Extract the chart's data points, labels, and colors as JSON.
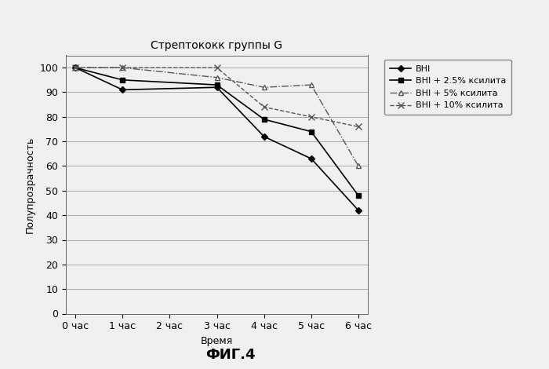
{
  "title": "Стрептококк группы G",
  "xlabel": "Время",
  "ylabel": "Полупрозрачность",
  "fig_label": "ФИГ.4",
  "x_ticks": [
    0,
    1,
    2,
    3,
    4,
    5,
    6
  ],
  "x_tick_labels": [
    "0 час",
    "1 час",
    "2 час",
    "3 час",
    "4 час",
    "5 час",
    "6 час"
  ],
  "ylim": [
    0,
    105
  ],
  "y_ticks": [
    0,
    10,
    20,
    30,
    40,
    50,
    60,
    70,
    80,
    90,
    100
  ],
  "series": [
    {
      "label": "BHI",
      "x": [
        0,
        1,
        3,
        4,
        5,
        6
      ],
      "y": [
        100,
        91,
        92,
        72,
        63,
        42
      ],
      "color": "#000000",
      "marker": "D",
      "markersize": 4,
      "linestyle": "-",
      "mfc": "#000000",
      "linewidth": 1.2
    },
    {
      "label": "BHI + 2.5% ксилита",
      "x": [
        0,
        1,
        3,
        4,
        5,
        6
      ],
      "y": [
        100,
        95,
        93,
        79,
        74,
        48
      ],
      "color": "#000000",
      "marker": "s",
      "markersize": 5,
      "linestyle": "-",
      "mfc": "#000000",
      "linewidth": 1.2
    },
    {
      "label": "BHI + 5% ксилита",
      "x": [
        0,
        1,
        3,
        4,
        5,
        6
      ],
      "y": [
        100,
        100,
        96,
        92,
        93,
        60
      ],
      "color": "#555555",
      "marker": "^",
      "markersize": 5,
      "linestyle": "-.",
      "mfc": "#ffffff",
      "linewidth": 1.0
    },
    {
      "label": "BHI + 10% ксилита",
      "x": [
        0,
        1,
        3,
        4,
        5,
        6
      ],
      "y": [
        100,
        100,
        100,
        84,
        80,
        76
      ],
      "color": "#555555",
      "marker": "x",
      "markersize": 6,
      "linestyle": "--",
      "mfc": "#555555",
      "linewidth": 1.0
    }
  ],
  "background_color": "#f0f0f0",
  "plot_bg": "#f0f0f0",
  "grid_color": "#aaaaaa",
  "title_fontsize": 10,
  "label_fontsize": 9,
  "tick_fontsize": 9,
  "legend_fontsize": 8
}
